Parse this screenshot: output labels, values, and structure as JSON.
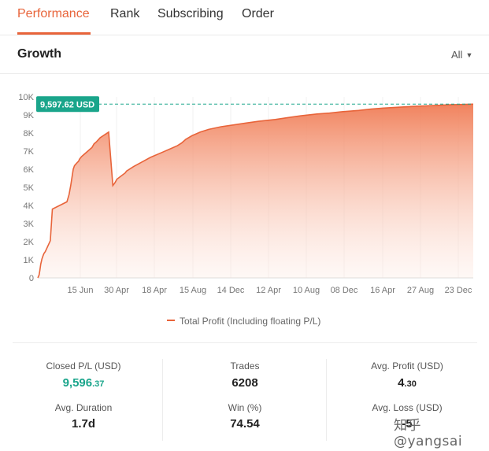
{
  "tabs": [
    {
      "label": "Performance",
      "active": true
    },
    {
      "label": "Rank"
    },
    {
      "label": "Subscribing"
    },
    {
      "label": "Order"
    }
  ],
  "growth": {
    "title": "Growth",
    "range": "All"
  },
  "chart_data": {
    "type": "area",
    "title": "",
    "xlabel": "",
    "ylabel": "",
    "y_ticks": [
      "0",
      "1K",
      "2K",
      "3K",
      "4K",
      "5K",
      "6K",
      "7K",
      "8K",
      "9K",
      "10K"
    ],
    "x_ticks": [
      "15 Jun",
      "30 Apr",
      "18 Apr",
      "15 Aug",
      "14 Dec",
      "12 Apr",
      "10 Aug",
      "08 Dec",
      "16 Apr",
      "27 Aug",
      "23 Dec"
    ],
    "ylim": [
      0,
      10000
    ],
    "grid": "vertical",
    "legend_position": "bottom",
    "current_value_label": "9,597.62 USD",
    "current_value": 9597.62,
    "series": [
      {
        "name": "Total Profit (Including floating P/L)",
        "color": "#e8643a",
        "x": [
          0,
          0.03,
          0.05,
          0.07,
          0.1,
          0.13,
          0.15,
          0.18,
          0.3,
          0.35,
          0.7,
          0.75,
          0.79,
          0.85,
          0.88,
          0.9,
          0.94,
          0.98,
          1.0,
          1.05,
          1.1,
          1.2,
          1.3,
          1.35,
          1.4,
          1.5,
          1.7,
          1.8,
          1.85,
          1.9,
          2.1,
          2.13,
          2.3,
          2.5,
          2.7,
          3.0,
          3.2,
          3.35,
          3.45,
          3.55,
          3.7,
          3.9,
          4.1,
          4.4,
          4.7,
          5.0,
          5.3,
          5.7,
          6.0,
          6.3,
          6.7,
          7.0,
          7.3,
          7.7,
          8.0,
          8.3,
          8.7,
          9.0,
          9.3,
          9.6,
          9.9,
          10.2,
          10.45
        ],
        "values": [
          0,
          150,
          400,
          750,
          1050,
          1250,
          1350,
          1450,
          2050,
          3800,
          4200,
          4600,
          5100,
          6000,
          6200,
          6250,
          6350,
          6450,
          6550,
          6700,
          6800,
          7000,
          7200,
          7400,
          7500,
          7750,
          8050,
          5100,
          5250,
          5450,
          5800,
          5900,
          6150,
          6400,
          6650,
          6950,
          7150,
          7300,
          7450,
          7650,
          7850,
          8050,
          8200,
          8350,
          8450,
          8550,
          8650,
          8750,
          8850,
          8950,
          9050,
          9100,
          9180,
          9250,
          9320,
          9380,
          9430,
          9470,
          9500,
          9530,
          9560,
          9580,
          9597.62
        ]
      }
    ]
  },
  "stats": [
    {
      "label": "Closed P/L (USD)",
      "int": "9,596",
      "dec": ".37",
      "color": "green"
    },
    {
      "label": "Trades",
      "int": "6208",
      "dec": ""
    },
    {
      "label": "Avg. Profit (USD)",
      "int": "4",
      "dec": ".30"
    },
    {
      "label": "Avg. Duration",
      "int": "1.7d",
      "dec": ""
    },
    {
      "label": "Win (%)",
      "int": "74.54",
      "dec": ""
    },
    {
      "label": "Avg. Loss (USD)",
      "int": "-5",
      "dec": ""
    }
  ],
  "watermark": "知乎@yangsai",
  "icons": {
    "range_caret": "caret-down-icon"
  }
}
